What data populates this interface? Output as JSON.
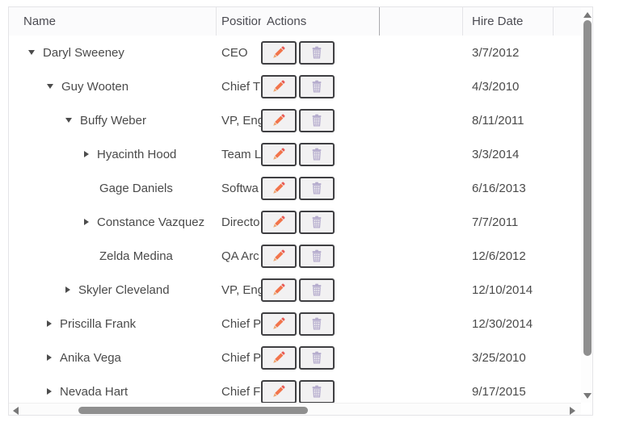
{
  "header": {
    "columns": [
      {
        "label": "Name"
      },
      {
        "label": "Position"
      },
      {
        "label": "Actions"
      },
      {
        "label": ""
      },
      {
        "label": "Hire Date"
      }
    ]
  },
  "rows": [
    {
      "name": "Daryl Sweeney",
      "level": 0,
      "state": "expanded",
      "position": "CEO",
      "hire_date": "3/7/2012"
    },
    {
      "name": "Guy Wooten",
      "level": 1,
      "state": "expanded",
      "position": "Chief T",
      "hire_date": "4/3/2010"
    },
    {
      "name": "Buffy Weber",
      "level": 2,
      "state": "expanded",
      "position": "VP, Eng",
      "hire_date": "8/11/2011"
    },
    {
      "name": "Hyacinth Hood",
      "level": 3,
      "state": "collapsed",
      "position": "Team L",
      "hire_date": "3/3/2014"
    },
    {
      "name": "Gage Daniels",
      "level": 3,
      "state": "leaf",
      "position": "Softwa",
      "hire_date": "6/16/2013"
    },
    {
      "name": "Constance Vazquez",
      "level": 3,
      "state": "collapsed",
      "position": "Directo",
      "hire_date": "7/7/2011"
    },
    {
      "name": "Zelda Medina",
      "level": 3,
      "state": "leaf",
      "position": "QA Arc",
      "hire_date": "12/6/2012"
    },
    {
      "name": "Skyler Cleveland",
      "level": 2,
      "state": "collapsed",
      "position": "VP, Eng",
      "hire_date": "12/10/2014"
    },
    {
      "name": "Priscilla Frank",
      "level": 1,
      "state": "collapsed",
      "position": "Chief P",
      "hire_date": "12/30/2014"
    },
    {
      "name": "Anika Vega",
      "level": 1,
      "state": "collapsed",
      "position": "Chief P",
      "hire_date": "3/25/2010"
    },
    {
      "name": "Nevada Hart",
      "level": 1,
      "state": "collapsed",
      "position": "Chief F",
      "hire_date": "9/17/2015"
    }
  ],
  "action_icons": {
    "edit": "pencil-icon",
    "delete": "trash-icon"
  },
  "colors": {
    "pencil_body": "#f2744b",
    "pencil_eraser": "#e85b55",
    "pencil_tip": "#eda46e",
    "trash": "#b5accd",
    "button_border": "#3f3f42",
    "button_bg": "#f2f1f2",
    "pane_divider": "#a9a9ad",
    "grid_border": "#e4e4e7",
    "text": "#4a4a4a",
    "scroll_thumb": "#8f8f8f"
  }
}
